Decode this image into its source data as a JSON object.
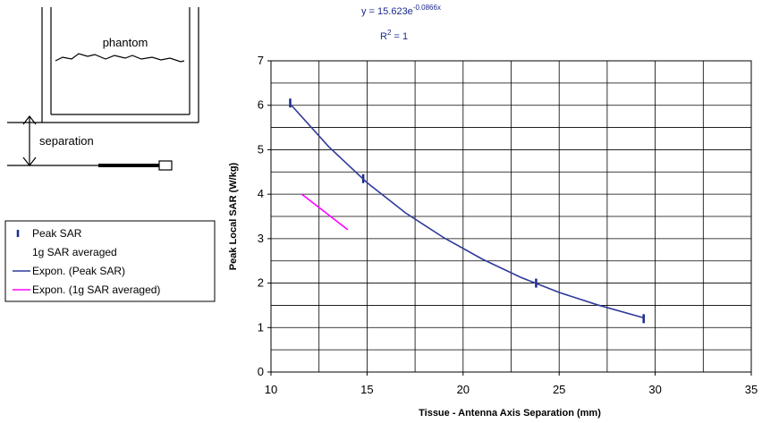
{
  "diagram": {
    "phantom_label": "phantom",
    "separation_label": "separation"
  },
  "chart_data": {
    "type": "scatter",
    "equation": {
      "base": "y = 15.623e",
      "exponent": "-0.0866x"
    },
    "r_squared": {
      "base": "R",
      "sup": "2",
      "rest": " = 1"
    },
    "x_label": "Tissue - Antenna Axis Separation (mm)",
    "y_label": "Peak Local SAR (W/kg)",
    "xlim": [
      10,
      35
    ],
    "xticks": [
      10,
      15,
      20,
      25,
      30,
      35
    ],
    "ylim": [
      0,
      7
    ],
    "yticks": [
      0,
      1,
      2,
      3,
      4,
      5,
      6,
      7
    ],
    "xgrid": [
      12.5,
      15,
      17.5,
      20,
      22.5,
      25,
      27.5,
      30,
      32.5
    ],
    "ygrid": [
      0.5,
      1,
      1.5,
      2,
      2.5,
      3,
      3.5,
      4,
      4.5,
      5,
      5.5,
      6,
      6.5
    ],
    "series": [
      {
        "name": "Peak SAR",
        "kind": "marker",
        "color": "#1a2a8c",
        "x": [
          11,
          14.8,
          23.8,
          29.4
        ],
        "values": [
          6.05,
          4.35,
          2.0,
          1.2
        ]
      },
      {
        "name": "1g SAR averaged",
        "kind": "marker",
        "color": "#1a2a8c",
        "x": [],
        "values": []
      },
      {
        "name": "Expon. (Peak SAR)",
        "kind": "line",
        "color": "#2e3a9a",
        "x": [
          11,
          13,
          15,
          17,
          19,
          21,
          23,
          25,
          27,
          29.4
        ],
        "values": [
          6.03,
          5.07,
          4.26,
          3.58,
          3.02,
          2.54,
          2.13,
          1.79,
          1.51,
          1.22
        ]
      },
      {
        "name": "Expon. (1g SAR averaged)",
        "kind": "line",
        "color": "#ff00ff",
        "x": [
          11.6,
          12.8,
          14.0
        ],
        "values": [
          4.0,
          3.6,
          3.2
        ]
      }
    ]
  }
}
